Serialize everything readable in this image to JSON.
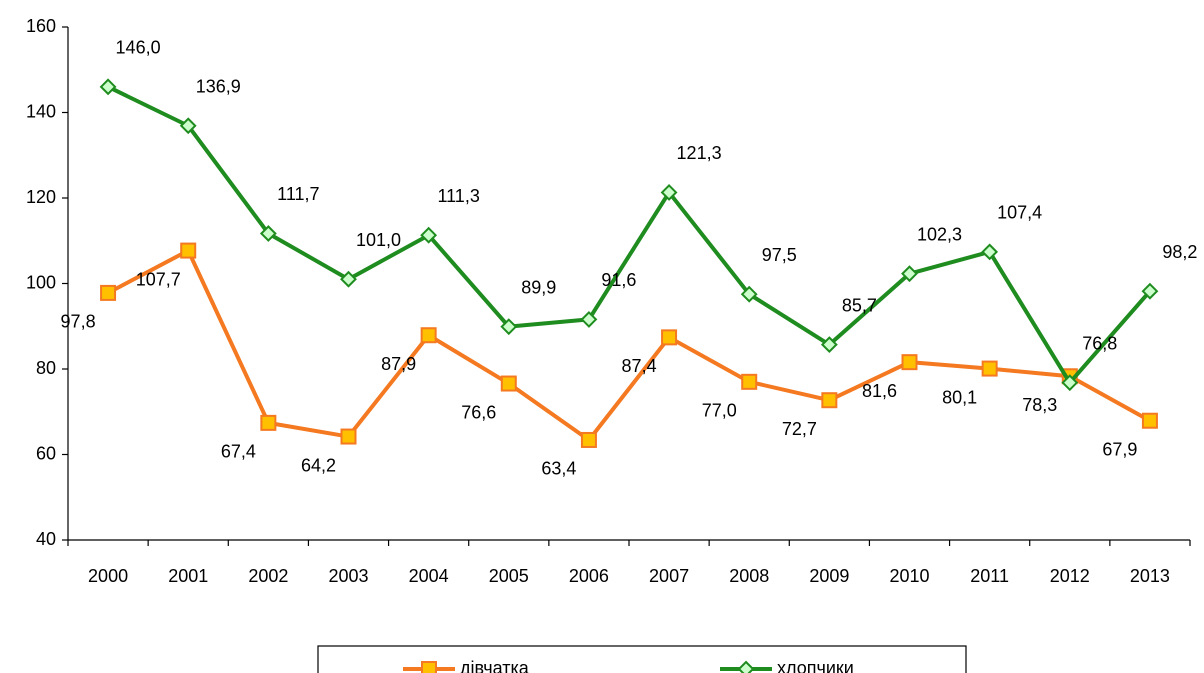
{
  "chart_data": {
    "type": "line",
    "categories": [
      "2000",
      "2001",
      "2002",
      "2003",
      "2004",
      "2005",
      "2006",
      "2007",
      "2008",
      "2009",
      "2010",
      "2011",
      "2012",
      "2013"
    ],
    "series": [
      {
        "name": "дівчатка",
        "color": "#f47920",
        "marker": "square",
        "marker_fill": "#ffc000",
        "values": [
          97.8,
          107.7,
          67.4,
          64.2,
          87.9,
          76.6,
          63.4,
          87.4,
          77.0,
          72.7,
          81.6,
          80.1,
          78.3,
          67.9
        ],
        "value_labels": [
          "97,8",
          "107,7",
          "67,4",
          "64,2",
          "87,9",
          "76,6",
          "63,4",
          "87,4",
          "77,0",
          "72,7",
          "81,6",
          "80,1",
          "78,3",
          "67,9"
        ]
      },
      {
        "name": "хлопчики",
        "color": "#1e8c1e",
        "marker": "diamond",
        "marker_fill": "#ccffcc",
        "values": [
          146.0,
          136.9,
          111.7,
          101.0,
          111.3,
          89.9,
          91.6,
          121.3,
          97.5,
          85.7,
          102.3,
          107.4,
          76.8,
          98.2
        ],
        "value_labels": [
          "146,0",
          "136,9",
          "111,7",
          "101,0",
          "111,3",
          "89,9",
          "91,6",
          "121,3",
          "97,5",
          "85,7",
          "102,3",
          "107,4",
          "76,8",
          "98,2"
        ]
      }
    ],
    "ylim": [
      40,
      160
    ],
    "yticks": [
      40,
      60,
      80,
      100,
      120,
      140,
      160
    ],
    "legend": "bottom"
  }
}
